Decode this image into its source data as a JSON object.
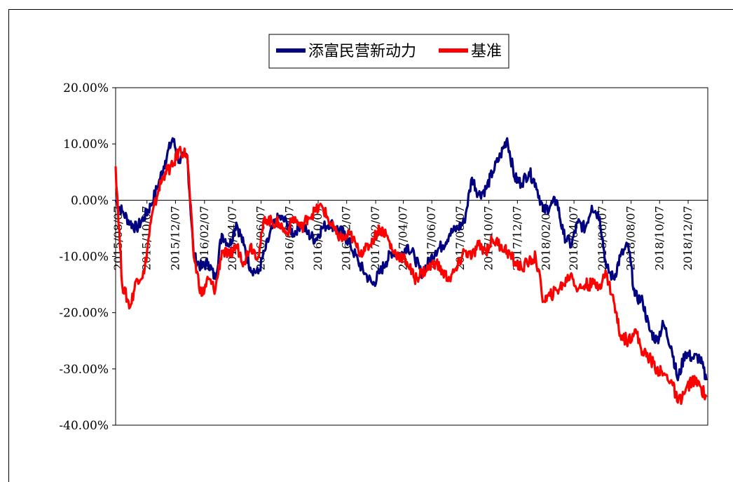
{
  "chart_data": {
    "type": "line",
    "title": "",
    "xlabel": "",
    "ylabel": "",
    "ylim": [
      -40,
      20
    ],
    "ytick_values": [
      20,
      10,
      0,
      -10,
      -20,
      -30,
      -40
    ],
    "yticks": [
      "20.00%",
      "10.00%",
      "0.00%",
      "-10.00%",
      "-20.00%",
      "-30.00%",
      "-40.00%"
    ],
    "xticks": [
      "2015/08/07",
      "2015/10/07",
      "2015/12/07",
      "2016/02/07",
      "2016/04/07",
      "2016/06/07",
      "2016/08/07",
      "2016/10/07",
      "2016/12/07",
      "2017/02/07",
      "2017/04/07",
      "2017/06/07",
      "2017/08/07",
      "2017/10/07",
      "2017/12/07",
      "2018/02/07",
      "2018/04/07",
      "2018/06/07",
      "2018/08/07",
      "2018/10/07",
      "2018/12/07"
    ],
    "legend_position": "top-center",
    "grid": false,
    "series": [
      {
        "name": "添富民营新动力",
        "color": "#000080",
        "x": [
          "2015/08/01",
          "2015/08/15",
          "2015/09/01",
          "2015/09/15",
          "2015/10/01",
          "2015/10/15",
          "2015/11/01",
          "2015/11/15",
          "2015/12/01",
          "2015/12/15",
          "2016/01/01",
          "2016/01/15",
          "2016/02/01",
          "2016/02/15",
          "2016/03/01",
          "2016/03/15",
          "2016/04/01",
          "2016/04/15",
          "2016/05/01",
          "2016/05/15",
          "2016/06/01",
          "2016/06/15",
          "2016/07/01",
          "2016/07/15",
          "2016/08/01",
          "2016/08/15",
          "2016/09/01",
          "2016/09/15",
          "2016/10/01",
          "2016/10/15",
          "2016/11/01",
          "2016/11/15",
          "2016/12/01",
          "2016/12/15",
          "2017/01/01",
          "2017/01/15",
          "2017/02/01",
          "2017/02/15",
          "2017/03/01",
          "2017/03/15",
          "2017/04/01",
          "2017/04/15",
          "2017/05/01",
          "2017/05/15",
          "2017/06/01",
          "2017/06/15",
          "2017/07/01",
          "2017/07/15",
          "2017/08/01",
          "2017/08/15",
          "2017/09/01",
          "2017/09/15",
          "2017/10/01",
          "2017/10/15",
          "2017/11/01",
          "2017/11/15",
          "2017/12/01",
          "2017/12/15",
          "2018/01/01",
          "2018/01/15",
          "2018/02/01",
          "2018/02/15",
          "2018/03/01",
          "2018/03/15",
          "2018/04/01",
          "2018/04/15",
          "2018/05/01",
          "2018/05/15",
          "2018/06/01",
          "2018/06/15",
          "2018/07/01",
          "2018/07/15",
          "2018/08/01",
          "2018/08/15",
          "2018/09/01",
          "2018/09/15",
          "2018/10/01",
          "2018/10/15",
          "2018/11/01",
          "2018/11/15",
          "2018/12/01",
          "2018/12/15",
          "2019/01/01",
          "2019/01/15"
        ],
        "values": [
          0,
          -2,
          -4,
          -5,
          -3,
          -1,
          3,
          7,
          11,
          7,
          8,
          -10,
          -12,
          -11,
          -14,
          -6,
          -8,
          -4,
          -8,
          -12,
          -13,
          -9,
          -5,
          -3,
          -4,
          -6,
          -4,
          -6,
          -7,
          -5,
          -4,
          -5,
          -6,
          -8,
          -11,
          -13,
          -15,
          -13,
          -11,
          -9,
          -10,
          -8,
          -10,
          -13,
          -11,
          -9,
          -8,
          -6,
          -5,
          -4,
          4,
          1,
          2,
          5,
          8,
          11,
          4,
          3,
          5,
          3,
          -2,
          -1,
          0,
          -6,
          -8,
          -4,
          -5,
          -1,
          -3,
          -12,
          -14,
          -10,
          -8,
          -17,
          -18,
          -23,
          -25,
          -22,
          -26,
          -32,
          -27,
          -28,
          -28,
          -32
        ]
      },
      {
        "name": "基准",
        "color": "#ff0000",
        "x": [
          "2015/08/01",
          "2015/08/15",
          "2015/09/01",
          "2015/09/15",
          "2015/10/01",
          "2015/10/15",
          "2015/11/01",
          "2015/11/15",
          "2015/12/01",
          "2015/12/15",
          "2016/01/01",
          "2016/01/15",
          "2016/02/01",
          "2016/02/15",
          "2016/03/01",
          "2016/03/15",
          "2016/04/01",
          "2016/04/15",
          "2016/05/01",
          "2016/05/15",
          "2016/06/01",
          "2016/06/15",
          "2016/07/01",
          "2016/07/15",
          "2016/08/01",
          "2016/08/15",
          "2016/09/01",
          "2016/09/15",
          "2016/10/01",
          "2016/10/15",
          "2016/11/01",
          "2016/11/15",
          "2016/12/01",
          "2016/12/15",
          "2017/01/01",
          "2017/01/15",
          "2017/02/01",
          "2017/02/15",
          "2017/03/01",
          "2017/03/15",
          "2017/04/01",
          "2017/04/15",
          "2017/05/01",
          "2017/05/15",
          "2017/06/01",
          "2017/06/15",
          "2017/07/01",
          "2017/07/15",
          "2017/08/01",
          "2017/08/15",
          "2017/09/01",
          "2017/09/15",
          "2017/10/01",
          "2017/10/15",
          "2017/11/01",
          "2017/11/15",
          "2017/12/01",
          "2017/12/15",
          "2018/01/01",
          "2018/01/15",
          "2018/02/01",
          "2018/02/15",
          "2018/03/01",
          "2018/03/15",
          "2018/04/01",
          "2018/04/15",
          "2018/05/01",
          "2018/05/15",
          "2018/06/01",
          "2018/06/15",
          "2018/07/01",
          "2018/07/15",
          "2018/08/01",
          "2018/08/15",
          "2018/09/01",
          "2018/09/15",
          "2018/10/01",
          "2018/10/15",
          "2018/11/01",
          "2018/11/15",
          "2018/12/01",
          "2018/12/15",
          "2019/01/01",
          "2019/01/15"
        ],
        "values": [
          6,
          -15,
          -19,
          -14,
          -13,
          -4,
          2,
          5,
          6,
          9,
          8,
          -10,
          -17,
          -14,
          -16,
          -9,
          -10,
          -8,
          -11,
          -8,
          -10,
          -3,
          -4,
          -4,
          -6,
          -3,
          -5,
          -3,
          -2,
          -1,
          -4,
          -6,
          -7,
          -6,
          -9,
          -9,
          -7,
          -5,
          -6,
          -9,
          -10,
          -11,
          -14,
          -13,
          -12,
          -11,
          -13,
          -14,
          -12,
          -9,
          -10,
          -8,
          -9,
          -7,
          -8,
          -9,
          -11,
          -12,
          -11,
          -10,
          -18,
          -17,
          -16,
          -15,
          -13,
          -16,
          -15,
          -15,
          -15,
          -13,
          -18,
          -24,
          -25,
          -23,
          -27,
          -28,
          -30,
          -31,
          -32,
          -36,
          -34,
          -32,
          -33,
          -35
        ]
      }
    ]
  }
}
